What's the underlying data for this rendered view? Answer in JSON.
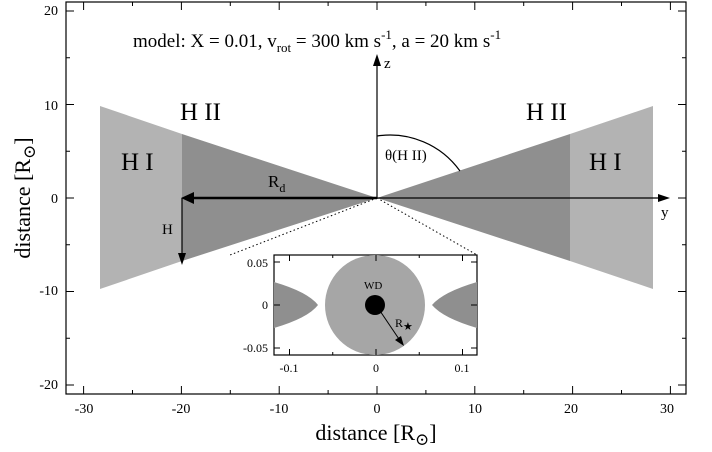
{
  "figure": {
    "title": {
      "prefix": "model: X = 0.01,  v",
      "sub": "rot",
      "mid": " = 300 km s",
      "sup1": "-1",
      "tail": ",  a = 20 km s",
      "sup2": "-1"
    },
    "x_axis_label": {
      "text": "distance [R",
      "sub": "⊙",
      "close": "]"
    },
    "y_axis_label": {
      "text": "distance [R",
      "sub": "⊙",
      "close": "]"
    },
    "x_ticks": [
      "-30",
      "-20",
      "-10",
      "0",
      "10",
      "20",
      "30"
    ],
    "y_ticks": [
      "20",
      "10",
      "0",
      "-10",
      "-20"
    ],
    "region_labels": {
      "hii_left": "H II",
      "hii_right": "H II",
      "hi_left": "H I",
      "hi_right": "H I"
    },
    "annotations": {
      "z_axis": "z",
      "y_axis": "y",
      "theta": "θ(H II)",
      "rd_main": "R",
      "rd_sub": "d",
      "h": "H"
    },
    "inset": {
      "x_ticks": [
        "-0.1",
        "0",
        "0.1"
      ],
      "y_ticks": [
        "0.05",
        "0",
        "-0.05"
      ],
      "wd_label": "WD",
      "r_main": "R",
      "r_sub": "★"
    },
    "colors": {
      "hi_region": "#b3b3b3",
      "hii_region": "#8f8f8f",
      "star_disk": "#a6a6a6",
      "white_dwarf": "#000000"
    }
  }
}
